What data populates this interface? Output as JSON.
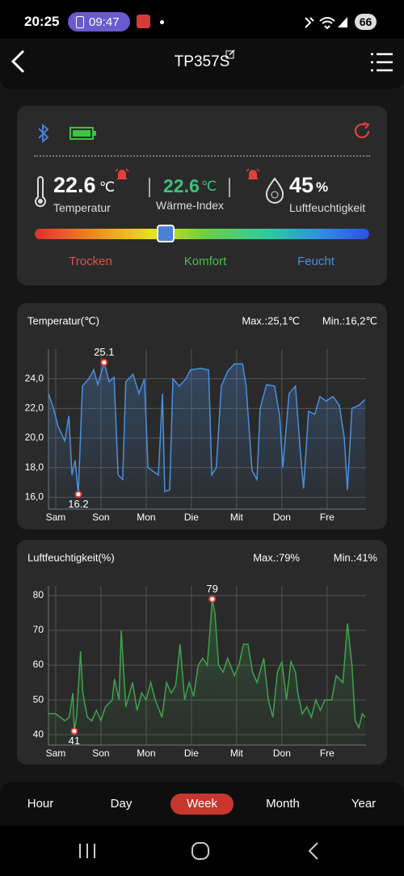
{
  "status_bar": {
    "time": "20:25",
    "timer": "09:47",
    "battery": "66"
  },
  "header": {
    "title": "TP357S"
  },
  "readings": {
    "temperature": {
      "value": "22.6",
      "unit": "℃",
      "label": "Temperatur"
    },
    "heat_index": {
      "value": "22.6",
      "unit": "℃",
      "label": "Wärme-Index"
    },
    "humidity": {
      "value": "45",
      "unit": "%",
      "label": "Luftfeuchtigkeit"
    }
  },
  "comfort_scale": [
    "Trocken",
    "Komfort",
    "Feucht"
  ],
  "chart_data": [
    {
      "type": "line",
      "title": "Temperatur(℃)",
      "max_label": "Max.:25,1℃",
      "min_label": "Min.:16,2℃",
      "x": [
        -0.16,
        -0.05,
        0.05,
        0.2,
        0.29,
        0.36,
        0.43,
        0.5,
        0.59,
        0.73,
        0.84,
        0.93,
        1.07,
        1.18,
        1.29,
        1.38,
        1.48,
        1.55,
        1.71,
        1.84,
        1.96,
        2.04,
        2.27,
        2.36,
        2.41,
        2.52,
        2.59,
        2.73,
        2.88,
        2.98,
        3.2,
        3.38,
        3.45,
        3.55,
        3.66,
        3.8,
        3.95,
        4.13,
        4.21,
        4.34,
        4.45,
        4.52,
        4.66,
        4.84,
        4.95,
        5.02,
        5.16,
        5.3,
        5.41,
        5.48,
        5.59,
        5.73,
        5.84,
        5.98,
        6.13,
        6.27,
        6.38,
        6.45,
        6.55,
        6.7,
        6.84
      ],
      "series": [
        {
          "color": "#4a8fe0",
          "values": [
            23.0,
            22.0,
            20.8,
            19.8,
            21.5,
            17.5,
            18.5,
            16.2,
            23.5,
            24.0,
            24.6,
            23.6,
            25.1,
            23.8,
            24.1,
            17.5,
            17.2,
            23.8,
            24.3,
            23.0,
            24.0,
            18.0,
            17.5,
            23.0,
            16.4,
            16.5,
            24.0,
            23.5,
            24.0,
            24.6,
            24.7,
            24.6,
            17.5,
            18.0,
            23.5,
            24.5,
            25.0,
            25.0,
            23.5,
            17.8,
            17.2,
            22.0,
            23.6,
            23.5,
            21.5,
            18.0,
            23.0,
            23.5,
            19.0,
            16.6,
            21.8,
            21.6,
            22.8,
            22.5,
            22.8,
            22.2,
            20.0,
            16.5,
            22.0,
            22.2,
            22.6
          ]
        }
      ],
      "xlim": [
        -0.16,
        6.86
      ],
      "xticks": [
        {
          "value": 0,
          "label": "Sam"
        },
        {
          "value": 1,
          "label": "Son"
        },
        {
          "value": 2,
          "label": "Mon"
        },
        {
          "value": 3,
          "label": "Die"
        },
        {
          "value": 4,
          "label": "Mit"
        },
        {
          "value": 5,
          "label": "Don"
        },
        {
          "value": 6,
          "label": "Fre"
        }
      ],
      "ylim": [
        15.2,
        26
      ],
      "yticks": [
        {
          "value": 16,
          "label": "16,0"
        },
        {
          "value": 18,
          "label": "18,0"
        },
        {
          "value": 20,
          "label": "20,0"
        },
        {
          "value": 22,
          "label": "22,0"
        },
        {
          "value": 24,
          "label": "24,0"
        }
      ],
      "grid": true
    },
    {
      "type": "line",
      "title": "Luftfeuchtigkeit(%)",
      "max_label": "Max.:79%",
      "min_label": "Min.:41%",
      "x": [
        -0.16,
        0.0,
        0.1,
        0.2,
        0.3,
        0.38,
        0.41,
        0.46,
        0.5,
        0.55,
        0.6,
        0.7,
        0.8,
        0.9,
        1.0,
        1.1,
        1.25,
        1.3,
        1.4,
        1.45,
        1.55,
        1.7,
        1.8,
        1.9,
        2.0,
        2.1,
        2.2,
        2.35,
        2.45,
        2.55,
        2.65,
        2.75,
        2.85,
        2.95,
        3.05,
        3.15,
        3.25,
        3.35,
        3.4,
        3.46,
        3.52,
        3.6,
        3.7,
        3.8,
        3.95,
        4.05,
        4.15,
        4.25,
        4.35,
        4.45,
        4.6,
        4.7,
        4.8,
        4.9,
        5.0,
        5.1,
        5.2,
        5.3,
        5.35,
        5.45,
        5.55,
        5.65,
        5.75,
        5.85,
        5.95,
        6.1,
        6.2,
        6.35,
        6.45,
        6.55,
        6.62,
        6.7,
        6.78,
        6.84
      ],
      "series": [
        {
          "color": "#3fa34d",
          "values": [
            46,
            46,
            45,
            44,
            45,
            52,
            41,
            45,
            53,
            64,
            52,
            45,
            44,
            47,
            44,
            48,
            50,
            56,
            50,
            70,
            48,
            55,
            47,
            52,
            50,
            55,
            50,
            45,
            55,
            52,
            54,
            66,
            50,
            55,
            51,
            60,
            62,
            60,
            68,
            79,
            75,
            60,
            58,
            62,
            57,
            60,
            66,
            66,
            58,
            55,
            62,
            50,
            45,
            58,
            61,
            50,
            61,
            58,
            52,
            46,
            48,
            45,
            50,
            47,
            50,
            50,
            57,
            55,
            72,
            60,
            44,
            42,
            46,
            45
          ]
        }
      ],
      "xlim": [
        -0.16,
        6.86
      ],
      "xticks": [
        {
          "value": 0,
          "label": "Sam"
        },
        {
          "value": 1,
          "label": "Son"
        },
        {
          "value": 2,
          "label": "Mon"
        },
        {
          "value": 3,
          "label": "Die"
        },
        {
          "value": 4,
          "label": "Mit"
        },
        {
          "value": 5,
          "label": "Don"
        },
        {
          "value": 6,
          "label": "Fre"
        }
      ],
      "ylim": [
        37,
        82.8
      ],
      "yticks": [
        40,
        50,
        60,
        70,
        80
      ],
      "grid": true
    }
  ],
  "tabs": [
    "Hour",
    "Day",
    "Week",
    "Month",
    "Year"
  ]
}
